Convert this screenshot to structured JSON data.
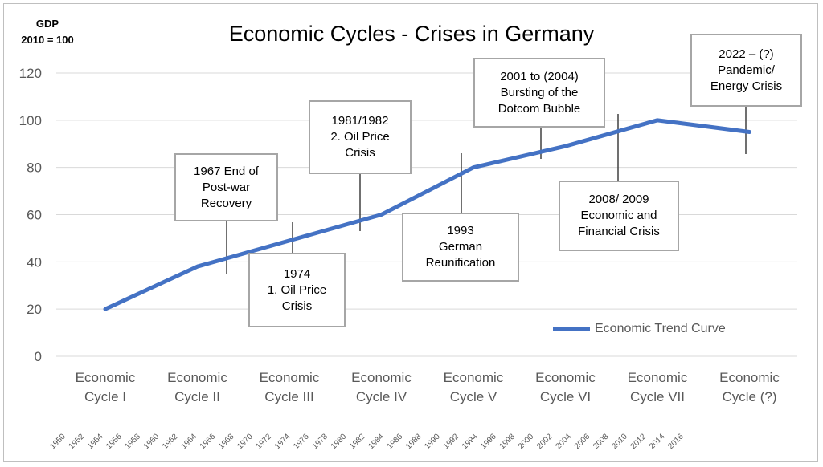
{
  "header": {
    "ylabel_line1": "GDP",
    "ylabel_line2": "2010 = 100",
    "title": "Economic Cycles - Crises in Germany"
  },
  "legend": {
    "label": "Economic Trend Curve"
  },
  "annotations": [
    [
      "1967 End of",
      "Post-war",
      "Recovery"
    ],
    [
      "1974",
      "1. Oil Price",
      "Crisis"
    ],
    [
      "1981/1982",
      "2. Oil Price",
      "Crisis"
    ],
    [
      "1993",
      "German",
      "Reunification"
    ],
    [
      "2001 to (2004)",
      "Bursting of the",
      "Dotcom Bubble"
    ],
    [
      "2008/ 2009",
      "Economic and",
      "Financial Crisis"
    ],
    [
      "2022 – (?)",
      "Pandemic/",
      "Energy Crisis"
    ]
  ],
  "chart_data": {
    "type": "line",
    "title": "Economic Cycles - Crises in Germany",
    "ylabel": "GDP 2010 = 100",
    "ylim": [
      0,
      120
    ],
    "yticks": [
      0,
      20,
      40,
      60,
      80,
      100,
      120
    ],
    "grid": true,
    "legend_position": "bottom-right",
    "categories": [
      [
        "Economic",
        "Cycle I"
      ],
      [
        "Economic",
        "Cycle II"
      ],
      [
        "Economic",
        "Cycle III"
      ],
      [
        "Economic",
        "Cycle IV"
      ],
      [
        "Economic",
        "Cycle V"
      ],
      [
        "Economic",
        "Cycle VI"
      ],
      [
        "Economic",
        "Cycle VII"
      ],
      [
        "Economic",
        "Cycle (?)"
      ]
    ],
    "year_ticks": [
      "1950",
      "1952",
      "1954",
      "1956",
      "1958",
      "1960",
      "1962",
      "1964",
      "1966",
      "1968",
      "1970",
      "1972",
      "1974",
      "1976",
      "1978",
      "1980",
      "1982",
      "1984",
      "1986",
      "1988",
      "1990",
      "1992",
      "1994",
      "1996",
      "1998",
      "2000",
      "2002",
      "2004",
      "2006",
      "2008",
      "2010",
      "2012",
      "2014",
      "2016"
    ],
    "series": [
      {
        "name": "Economic Trend Curve",
        "color": "#4472c4",
        "x": [
          0,
          1,
          2,
          3,
          4,
          5,
          6,
          7
        ],
        "values": [
          20,
          38,
          49,
          60,
          80,
          89,
          100,
          95
        ]
      }
    ]
  }
}
